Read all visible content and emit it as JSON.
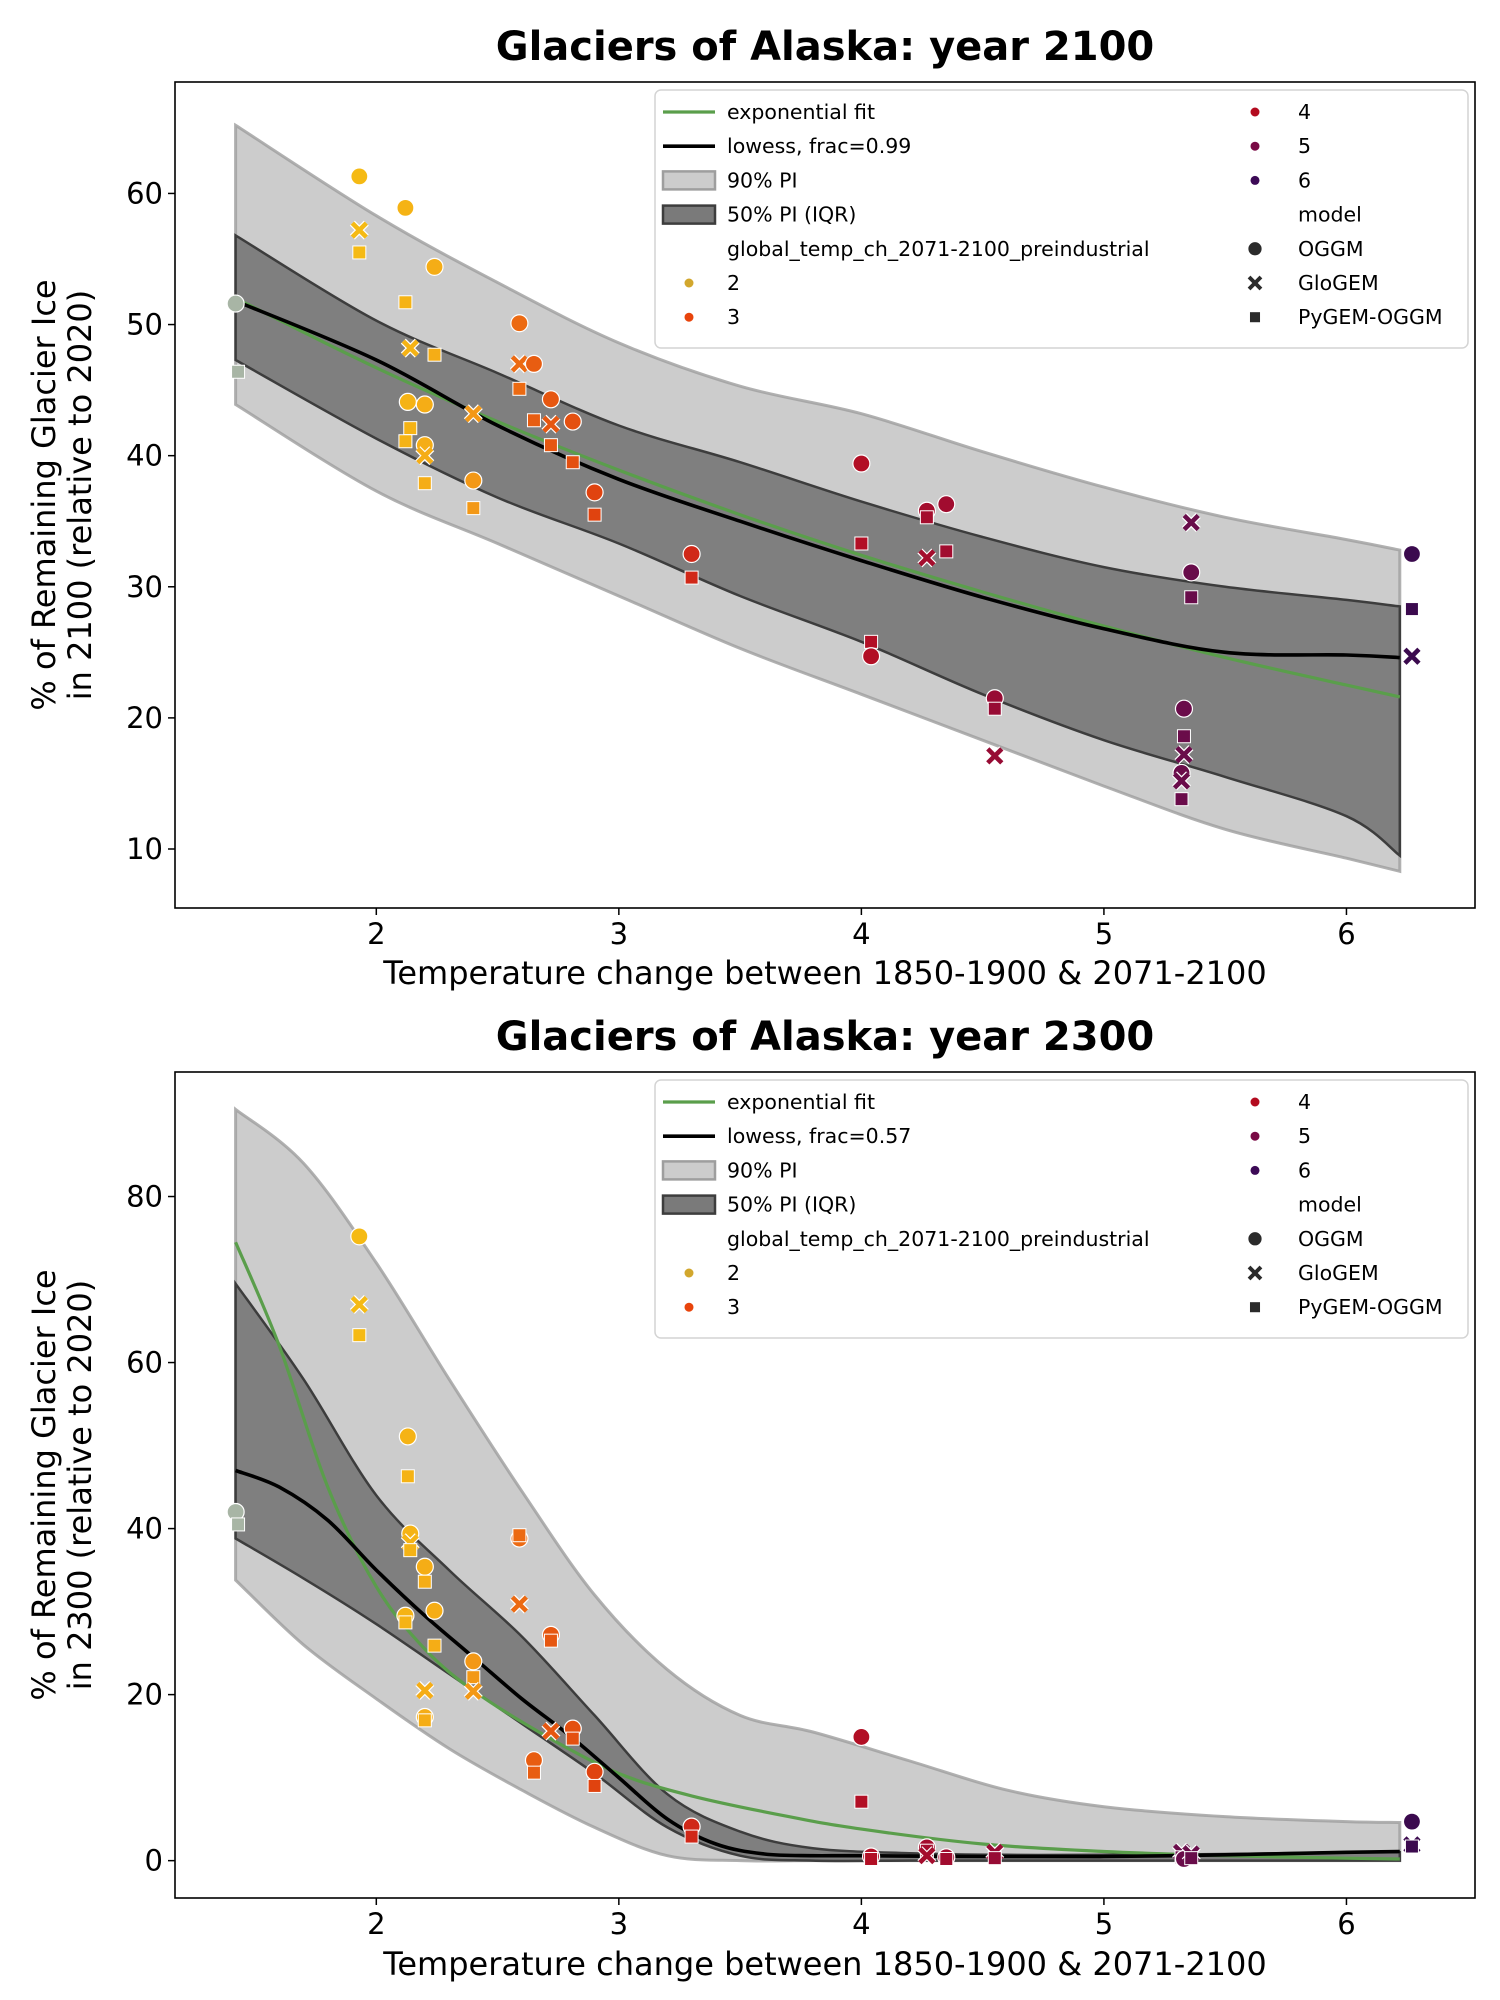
{
  "chart_data": [
    {
      "type": "scatter",
      "title": "Glaciers of Alaska:  year 2100",
      "xlabel": "Temperature change between 1850-1900 & 2071-2100",
      "ylabel_lines": [
        "% of Remaining Glacier Ice",
        "in 2100 (relative to 2020)"
      ],
      "xlim": [
        1.17,
        6.53
      ],
      "ylim": [
        5.5,
        68.5
      ],
      "xticks": [
        2,
        3,
        4,
        5,
        6
      ],
      "yticks": [
        10,
        20,
        30,
        40,
        50,
        60
      ],
      "grid": false,
      "legend_position": "top-right",
      "legend": {
        "exponential_fit": "exponential fit",
        "lowess": "lowess, frac=0.99",
        "pi90": "90% PI",
        "pi50": "50% PI (IQR)",
        "hue_title": "global_temp_ch_2071-2100_preindustrial",
        "hue_levels": [
          "2",
          "3",
          "4",
          "5",
          "6"
        ],
        "style_title": "model",
        "models": [
          "OGGM",
          "GloGEM",
          "PyGEM-OGGM"
        ]
      },
      "bands": {
        "x": [
          1.42,
          2.0,
          2.5,
          3.0,
          3.5,
          4.0,
          4.5,
          5.0,
          5.5,
          6.0,
          6.22
        ],
        "pi90_upper": [
          65.2,
          58.3,
          53.2,
          48.6,
          45.3,
          43.2,
          40.3,
          37.6,
          35.3,
          33.6,
          32.8
        ],
        "pi90_lower": [
          43.9,
          37.3,
          33.3,
          29.3,
          25.3,
          21.8,
          18.3,
          14.8,
          11.5,
          9.3,
          8.3
        ],
        "pi50_upper": [
          56.8,
          50.3,
          46.3,
          42.3,
          39.5,
          36.5,
          33.8,
          31.5,
          30.0,
          29.0,
          28.5
        ],
        "pi50_lower": [
          47.3,
          41.3,
          36.8,
          33.3,
          29.3,
          25.8,
          21.8,
          18.3,
          15.5,
          12.5,
          9.5
        ]
      },
      "exponential_fit": {
        "x": [
          1.42,
          2.0,
          2.5,
          3.0,
          3.5,
          4.0,
          4.5,
          5.0,
          5.5,
          6.0,
          6.22
        ],
        "y": [
          52.0,
          46.7,
          42.6,
          38.9,
          35.5,
          32.4,
          29.6,
          27.0,
          24.6,
          22.5,
          21.6
        ]
      },
      "lowess": {
        "x": [
          1.42,
          2.0,
          2.5,
          3.0,
          3.5,
          4.0,
          4.5,
          5.0,
          5.5,
          6.0,
          6.22
        ],
        "y": [
          51.8,
          47.3,
          42.3,
          38.2,
          35.0,
          32.0,
          29.2,
          26.8,
          25.0,
          24.8,
          24.6
        ]
      },
      "points": [
        {
          "x": 1.42,
          "y": 51.6,
          "m": "o",
          "c": 1.5
        },
        {
          "x": 1.43,
          "y": 46.4,
          "m": "s",
          "c": 1.5
        },
        {
          "x": 1.93,
          "y": 61.3,
          "m": "o",
          "c": 2
        },
        {
          "x": 1.93,
          "y": 57.2,
          "m": "x",
          "c": 2
        },
        {
          "x": 1.93,
          "y": 55.5,
          "m": "s",
          "c": 2
        },
        {
          "x": 2.12,
          "y": 58.9,
          "m": "o",
          "c": 2.1
        },
        {
          "x": 2.12,
          "y": 51.7,
          "m": "s",
          "c": 2.1
        },
        {
          "x": 2.14,
          "y": 48.2,
          "m": "x",
          "c": 2.1
        },
        {
          "x": 2.13,
          "y": 44.1,
          "m": "o",
          "c": 2.1
        },
        {
          "x": 2.14,
          "y": 42.1,
          "m": "s",
          "c": 2.1
        },
        {
          "x": 2.12,
          "y": 41.1,
          "m": "s",
          "c": 2.1
        },
        {
          "x": 2.2,
          "y": 43.9,
          "m": "o",
          "c": 2.2
        },
        {
          "x": 2.2,
          "y": 40.8,
          "m": "o",
          "c": 2.2
        },
        {
          "x": 2.2,
          "y": 40.0,
          "m": "x",
          "c": 2.2
        },
        {
          "x": 2.2,
          "y": 37.9,
          "m": "s",
          "c": 2.2
        },
        {
          "x": 2.24,
          "y": 54.4,
          "m": "o",
          "c": 2.2
        },
        {
          "x": 2.24,
          "y": 47.7,
          "m": "s",
          "c": 2.2
        },
        {
          "x": 2.4,
          "y": 43.2,
          "m": "x",
          "c": 2.4
        },
        {
          "x": 2.4,
          "y": 38.1,
          "m": "o",
          "c": 2.4
        },
        {
          "x": 2.4,
          "y": 36.0,
          "m": "s",
          "c": 2.4
        },
        {
          "x": 2.59,
          "y": 50.1,
          "m": "o",
          "c": 2.6
        },
        {
          "x": 2.59,
          "y": 47.0,
          "m": "x",
          "c": 2.6
        },
        {
          "x": 2.59,
          "y": 45.1,
          "m": "s",
          "c": 2.6
        },
        {
          "x": 2.65,
          "y": 47.0,
          "m": "o",
          "c": 2.7
        },
        {
          "x": 2.65,
          "y": 42.7,
          "m": "s",
          "c": 2.7
        },
        {
          "x": 2.72,
          "y": 44.3,
          "m": "o",
          "c": 2.75
        },
        {
          "x": 2.72,
          "y": 42.4,
          "m": "x",
          "c": 2.75
        },
        {
          "x": 2.72,
          "y": 40.8,
          "m": "s",
          "c": 2.75
        },
        {
          "x": 2.81,
          "y": 42.6,
          "m": "o",
          "c": 2.8
        },
        {
          "x": 2.81,
          "y": 39.5,
          "m": "s",
          "c": 2.8
        },
        {
          "x": 2.9,
          "y": 37.2,
          "m": "o",
          "c": 2.9
        },
        {
          "x": 2.9,
          "y": 35.5,
          "m": "s",
          "c": 2.9
        },
        {
          "x": 3.3,
          "y": 32.5,
          "m": "o",
          "c": 3.3
        },
        {
          "x": 3.3,
          "y": 30.7,
          "m": "s",
          "c": 3.3
        },
        {
          "x": 4.0,
          "y": 39.4,
          "m": "o",
          "c": 4.0
        },
        {
          "x": 4.0,
          "y": 33.3,
          "m": "s",
          "c": 4.0
        },
        {
          "x": 4.04,
          "y": 25.8,
          "m": "s",
          "c": 4.0
        },
        {
          "x": 4.04,
          "y": 24.7,
          "m": "o",
          "c": 4.0
        },
        {
          "x": 4.27,
          "y": 35.8,
          "m": "o",
          "c": 4.3
        },
        {
          "x": 4.27,
          "y": 35.3,
          "m": "s",
          "c": 4.3
        },
        {
          "x": 4.27,
          "y": 32.2,
          "m": "x",
          "c": 4.3
        },
        {
          "x": 4.35,
          "y": 36.3,
          "m": "o",
          "c": 4.35
        },
        {
          "x": 4.35,
          "y": 32.7,
          "m": "s",
          "c": 4.35
        },
        {
          "x": 4.55,
          "y": 21.5,
          "m": "o",
          "c": 4.55
        },
        {
          "x": 4.55,
          "y": 20.7,
          "m": "s",
          "c": 4.55
        },
        {
          "x": 4.55,
          "y": 17.1,
          "m": "x",
          "c": 4.55
        },
        {
          "x": 5.33,
          "y": 20.7,
          "m": "o",
          "c": 5.3
        },
        {
          "x": 5.33,
          "y": 18.6,
          "m": "s",
          "c": 5.3
        },
        {
          "x": 5.33,
          "y": 17.2,
          "m": "x",
          "c": 5.3
        },
        {
          "x": 5.32,
          "y": 15.8,
          "m": "o",
          "c": 5.3
        },
        {
          "x": 5.32,
          "y": 15.2,
          "m": "x",
          "c": 5.3
        },
        {
          "x": 5.32,
          "y": 13.8,
          "m": "s",
          "c": 5.3
        },
        {
          "x": 5.36,
          "y": 34.9,
          "m": "x",
          "c": 5.35
        },
        {
          "x": 5.36,
          "y": 31.1,
          "m": "o",
          "c": 5.35
        },
        {
          "x": 5.36,
          "y": 29.2,
          "m": "s",
          "c": 5.35
        },
        {
          "x": 6.27,
          "y": 32.5,
          "m": "o",
          "c": 6.27
        },
        {
          "x": 6.27,
          "y": 28.3,
          "m": "s",
          "c": 6.27
        },
        {
          "x": 6.27,
          "y": 24.7,
          "m": "x",
          "c": 6.27
        }
      ]
    },
    {
      "type": "scatter",
      "title": "Glaciers of Alaska:  year 2300",
      "xlabel": "Temperature change between 1850-1900 & 2071-2100",
      "ylabel_lines": [
        "% of Remaining Glacier Ice",
        "in 2300 (relative to 2020)"
      ],
      "xlim": [
        1.17,
        6.53
      ],
      "ylim": [
        -4.5,
        95.0
      ],
      "xticks": [
        2,
        3,
        4,
        5,
        6
      ],
      "yticks": [
        0,
        20,
        40,
        60,
        80
      ],
      "grid": false,
      "legend_position": "top-right",
      "legend": {
        "exponential_fit": "exponential fit",
        "lowess": "lowess, frac=0.57",
        "pi90": "90% PI",
        "pi50": "50% PI (IQR)",
        "hue_title": "global_temp_ch_2071-2100_preindustrial",
        "hue_levels": [
          "2",
          "3",
          "4",
          "5",
          "6"
        ],
        "style_title": "model",
        "models": [
          "OGGM",
          "GloGEM",
          "PyGEM-OGGM"
        ]
      },
      "bands": {
        "x": [
          1.42,
          1.7,
          2.0,
          2.3,
          2.6,
          2.9,
          3.2,
          3.5,
          3.8,
          4.2,
          4.6,
          5.0,
          5.5,
          6.0,
          6.22
        ],
        "pi90_upper": [
          90.5,
          84.0,
          72.0,
          58.0,
          44.5,
          32.0,
          23.0,
          17.5,
          15.5,
          12.0,
          8.5,
          6.5,
          5.3,
          4.7,
          4.6
        ],
        "pi90_lower": [
          33.8,
          26.0,
          19.5,
          13.5,
          8.5,
          4.0,
          0.6,
          0.0,
          0.0,
          0.0,
          0.0,
          0.0,
          0.0,
          0.0,
          0.0
        ],
        "pi50_upper": [
          69.5,
          58.0,
          44.0,
          35.0,
          27.0,
          17.5,
          8.0,
          3.5,
          1.5,
          0.9,
          0.7,
          0.7,
          0.8,
          1.0,
          1.0
        ],
        "pi50_lower": [
          38.8,
          34.0,
          28.5,
          22.5,
          16.5,
          10.5,
          4.0,
          0.6,
          0.0,
          0.0,
          0.0,
          0.0,
          0.0,
          0.0,
          0.0
        ]
      },
      "exponential_fit": {
        "x": [
          1.42,
          1.6,
          1.8,
          2.0,
          2.2,
          2.4,
          2.7,
          3.0,
          3.3,
          3.7,
          4.0,
          4.5,
          5.0,
          5.5,
          6.0,
          6.22
        ],
        "y": [
          74.5,
          62.0,
          45.0,
          33.0,
          25.5,
          20.5,
          15.0,
          10.5,
          7.8,
          5.3,
          3.8,
          2.0,
          1.1,
          0.6,
          0.3,
          0.2
        ]
      },
      "lowess": {
        "x": [
          1.42,
          1.6,
          1.8,
          2.0,
          2.2,
          2.4,
          2.6,
          2.8,
          3.0,
          3.2,
          3.4,
          3.6,
          3.8,
          4.0,
          4.5,
          5.0,
          5.5,
          6.0,
          6.22
        ],
        "y": [
          47.0,
          45.0,
          41.0,
          35.0,
          29.5,
          24.5,
          19.5,
          15.0,
          10.0,
          5.0,
          2.0,
          0.8,
          0.6,
          0.6,
          0.5,
          0.5,
          0.7,
          1.0,
          1.1
        ]
      },
      "points": [
        {
          "x": 1.42,
          "y": 42.0,
          "m": "o",
          "c": 1.5
        },
        {
          "x": 1.43,
          "y": 40.5,
          "m": "s",
          "c": 1.5
        },
        {
          "x": 1.93,
          "y": 75.2,
          "m": "o",
          "c": 2
        },
        {
          "x": 1.93,
          "y": 67.0,
          "m": "x",
          "c": 2
        },
        {
          "x": 1.93,
          "y": 63.3,
          "m": "s",
          "c": 2
        },
        {
          "x": 2.13,
          "y": 51.1,
          "m": "o",
          "c": 2.1
        },
        {
          "x": 2.13,
          "y": 46.3,
          "m": "s",
          "c": 2.1
        },
        {
          "x": 2.14,
          "y": 39.4,
          "m": "o",
          "c": 2.1
        },
        {
          "x": 2.14,
          "y": 38.3,
          "m": "x",
          "c": 2.1
        },
        {
          "x": 2.14,
          "y": 37.4,
          "m": "s",
          "c": 2.1
        },
        {
          "x": 2.12,
          "y": 29.5,
          "m": "o",
          "c": 2.1
        },
        {
          "x": 2.12,
          "y": 28.7,
          "m": "s",
          "c": 2.1
        },
        {
          "x": 2.2,
          "y": 35.4,
          "m": "o",
          "c": 2.2
        },
        {
          "x": 2.2,
          "y": 33.6,
          "m": "s",
          "c": 2.2
        },
        {
          "x": 2.2,
          "y": 20.5,
          "m": "x",
          "c": 2.2
        },
        {
          "x": 2.2,
          "y": 17.3,
          "m": "o",
          "c": 2.2
        },
        {
          "x": 2.2,
          "y": 16.9,
          "m": "s",
          "c": 2.2
        },
        {
          "x": 2.24,
          "y": 30.1,
          "m": "o",
          "c": 2.2
        },
        {
          "x": 2.24,
          "y": 25.9,
          "m": "s",
          "c": 2.2
        },
        {
          "x": 2.4,
          "y": 24.0,
          "m": "o",
          "c": 2.4
        },
        {
          "x": 2.4,
          "y": 22.1,
          "m": "s",
          "c": 2.4
        },
        {
          "x": 2.4,
          "y": 20.4,
          "m": "x",
          "c": 2.4
        },
        {
          "x": 2.59,
          "y": 38.8,
          "m": "o",
          "c": 2.6
        },
        {
          "x": 2.59,
          "y": 39.2,
          "m": "s",
          "c": 2.6
        },
        {
          "x": 2.59,
          "y": 30.9,
          "m": "x",
          "c": 2.6
        },
        {
          "x": 2.65,
          "y": 12.1,
          "m": "o",
          "c": 2.7
        },
        {
          "x": 2.65,
          "y": 10.6,
          "m": "s",
          "c": 2.7
        },
        {
          "x": 2.72,
          "y": 27.2,
          "m": "o",
          "c": 2.75
        },
        {
          "x": 2.72,
          "y": 26.5,
          "m": "s",
          "c": 2.75
        },
        {
          "x": 2.72,
          "y": 15.6,
          "m": "x",
          "c": 2.75
        },
        {
          "x": 2.81,
          "y": 15.9,
          "m": "o",
          "c": 2.8
        },
        {
          "x": 2.81,
          "y": 14.7,
          "m": "s",
          "c": 2.8
        },
        {
          "x": 2.9,
          "y": 10.7,
          "m": "o",
          "c": 2.9
        },
        {
          "x": 2.9,
          "y": 9.0,
          "m": "s",
          "c": 2.9
        },
        {
          "x": 3.3,
          "y": 4.1,
          "m": "o",
          "c": 3.3
        },
        {
          "x": 3.3,
          "y": 2.9,
          "m": "s",
          "c": 3.3
        },
        {
          "x": 4.0,
          "y": 14.9,
          "m": "o",
          "c": 4.0
        },
        {
          "x": 4.0,
          "y": 7.1,
          "m": "s",
          "c": 4.0
        },
        {
          "x": 4.04,
          "y": 0.5,
          "m": "o",
          "c": 4.0
        },
        {
          "x": 4.04,
          "y": 0.2,
          "m": "s",
          "c": 4.0
        },
        {
          "x": 4.27,
          "y": 1.6,
          "m": "o",
          "c": 4.3
        },
        {
          "x": 4.27,
          "y": 1.2,
          "m": "s",
          "c": 4.3
        },
        {
          "x": 4.27,
          "y": 0.6,
          "m": "x",
          "c": 4.3
        },
        {
          "x": 4.35,
          "y": 0.4,
          "m": "o",
          "c": 4.35
        },
        {
          "x": 4.35,
          "y": 0.2,
          "m": "s",
          "c": 4.35
        },
        {
          "x": 4.55,
          "y": 1.0,
          "m": "x",
          "c": 4.55
        },
        {
          "x": 4.55,
          "y": 0.3,
          "m": "s",
          "c": 4.55
        },
        {
          "x": 5.32,
          "y": 1.0,
          "m": "x",
          "c": 5.3
        },
        {
          "x": 5.32,
          "y": 0.4,
          "m": "s",
          "c": 5.3
        },
        {
          "x": 5.33,
          "y": 0.2,
          "m": "o",
          "c": 5.3
        },
        {
          "x": 5.36,
          "y": 0.8,
          "m": "x",
          "c": 5.35
        },
        {
          "x": 5.36,
          "y": 0.3,
          "m": "s",
          "c": 5.35
        },
        {
          "x": 6.27,
          "y": 4.7,
          "m": "o",
          "c": 6.27
        },
        {
          "x": 6.27,
          "y": 1.9,
          "m": "x",
          "c": 6.27
        },
        {
          "x": 6.27,
          "y": 1.7,
          "m": "s",
          "c": 6.27
        }
      ]
    }
  ],
  "colors": {
    "exponential_fit": "#5a9e4b",
    "lowess": "#000000",
    "pi90_fill": "#cccccc",
    "pi90_edge": "#9e9e9e",
    "pi50_fill": "#7a7a7a",
    "pi50_edge": "#3d3d3d",
    "hue_levels": [
      "#d2a72d",
      "#e8440c",
      "#b30b1f",
      "#790a45",
      "#3c0a56"
    ],
    "hue_scale": [
      {
        "t": 1.4,
        "color": "#6db3ff"
      },
      {
        "t": 1.6,
        "color": "#e2b64a"
      },
      {
        "t": 2.0,
        "color": "#f5ba14"
      },
      {
        "t": 2.35,
        "color": "#f5a317"
      },
      {
        "t": 2.6,
        "color": "#ec6a12"
      },
      {
        "t": 2.9,
        "color": "#e0430f"
      },
      {
        "t": 3.3,
        "color": "#d02818"
      },
      {
        "t": 4.0,
        "color": "#b20f25"
      },
      {
        "t": 4.5,
        "color": "#9a0b33"
      },
      {
        "t": 5.3,
        "color": "#6a0c4a"
      },
      {
        "t": 6.3,
        "color": "#3a0a4e"
      }
    ]
  }
}
